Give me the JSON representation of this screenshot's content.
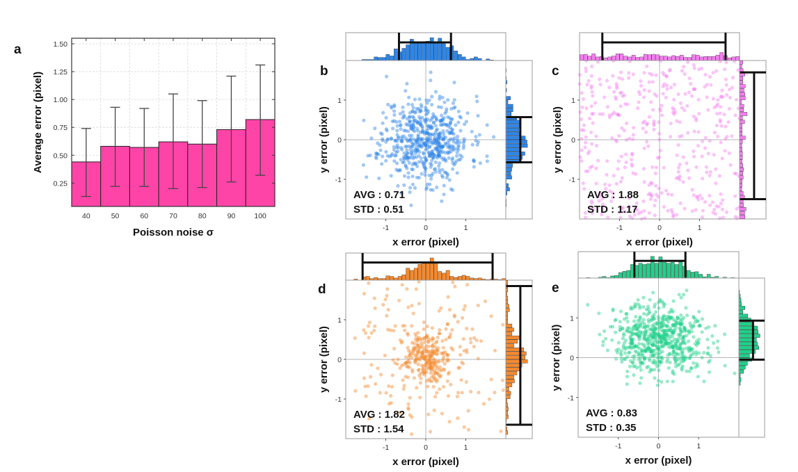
{
  "chart_data": [
    {
      "id": "a",
      "type": "bar",
      "panel_letter": "a",
      "title": "",
      "xlabel": "Poisson noise σ",
      "ylabel": "Average error (pixel)",
      "categories": [
        "40",
        "50",
        "60",
        "70",
        "80",
        "90",
        "100"
      ],
      "values": [
        0.44,
        0.58,
        0.57,
        0.62,
        0.6,
        0.73,
        0.82
      ],
      "error_upper": [
        0.74,
        0.93,
        0.92,
        1.05,
        0.99,
        1.21,
        1.31
      ],
      "error_lower": [
        0.13,
        0.22,
        0.22,
        0.2,
        0.21,
        0.26,
        0.32
      ],
      "yticks": [
        "0.25",
        "0.50",
        "0.75",
        "1.00",
        "1.25",
        "1.50"
      ],
      "ylim": [
        0.04,
        1.55
      ],
      "grid": true,
      "bar_color": "#ff44a8"
    },
    {
      "id": "b",
      "type": "scatter",
      "panel_letter": "b",
      "xlabel": "x error (pixel)",
      "ylabel": "y error (pixel)",
      "xlim": [
        -2,
        2
      ],
      "ylim": [
        -2,
        2
      ],
      "xticks": [
        "-1",
        "0",
        "1"
      ],
      "yticks": [
        "-1",
        "0",
        "1"
      ],
      "avg_label": "AVG : 0.71",
      "std_label": "STD : 0.51",
      "color": "#2f86e8",
      "point_count": 600,
      "x_mean": 0.0,
      "x_spread": 0.55,
      "y_mean": 0.0,
      "y_spread": 0.55,
      "distribution": "gaussian",
      "x_range_marker": [
        -0.67,
        0.63
      ],
      "y_range_marker": [
        -0.57,
        0.57
      ]
    },
    {
      "id": "c",
      "type": "scatter",
      "panel_letter": "c",
      "xlabel": "x error (pixel)",
      "ylabel": "y error (pixel)",
      "xlim": [
        -2,
        2
      ],
      "ylim": [
        -2,
        2
      ],
      "xticks": [
        "-1",
        "0",
        "1"
      ],
      "yticks": [
        "-1",
        "0",
        "1"
      ],
      "avg_label": "AVG : 1.88",
      "std_label": "STD : 1.17",
      "color": "#f57ef0",
      "point_count": 420,
      "x_mean": 0.0,
      "x_spread": 2.0,
      "y_mean": 0.0,
      "y_spread": 2.0,
      "distribution": "uniform",
      "x_range_marker": [
        -1.43,
        1.65
      ],
      "y_range_marker": [
        -1.5,
        1.7
      ]
    },
    {
      "id": "d",
      "type": "scatter",
      "panel_letter": "d",
      "xlabel": "x error (pixel)",
      "ylabel": "y error (pixel)",
      "xlim": [
        -2,
        2
      ],
      "ylim": [
        -2,
        2
      ],
      "xticks": [
        "-1",
        "0",
        "1"
      ],
      "yticks": [
        "-1",
        "0",
        "1"
      ],
      "avg_label": "AVG : 1.82",
      "std_label": "STD : 1.54",
      "color": "#f58a2e",
      "point_count": 420,
      "x_mean": 0.0,
      "x_spread": 0.75,
      "y_mean": 0.05,
      "y_spread": 0.75,
      "distribution": "heavy-tailed",
      "x_range_marker": [
        -1.58,
        1.67
      ],
      "y_range_marker": [
        -1.65,
        1.85
      ]
    },
    {
      "id": "e",
      "type": "scatter",
      "panel_letter": "e",
      "xlabel": "x error (pixel)",
      "ylabel": "y error (pixel)",
      "xlim": [
        -2,
        2
      ],
      "ylim": [
        -2,
        2
      ],
      "xticks": [
        "-1",
        "0",
        "1"
      ],
      "yticks": [
        "-1",
        "0",
        "1"
      ],
      "avg_label": "AVG : 0.83",
      "std_label": "STD : 0.35",
      "color": "#1fd18a",
      "point_count": 650,
      "x_mean": 0.05,
      "x_spread": 0.6,
      "y_mean": 0.45,
      "y_spread": 0.45,
      "distribution": "gaussian",
      "x_range_marker": [
        -0.6,
        0.67
      ],
      "y_range_marker": [
        -0.05,
        0.93
      ]
    }
  ]
}
